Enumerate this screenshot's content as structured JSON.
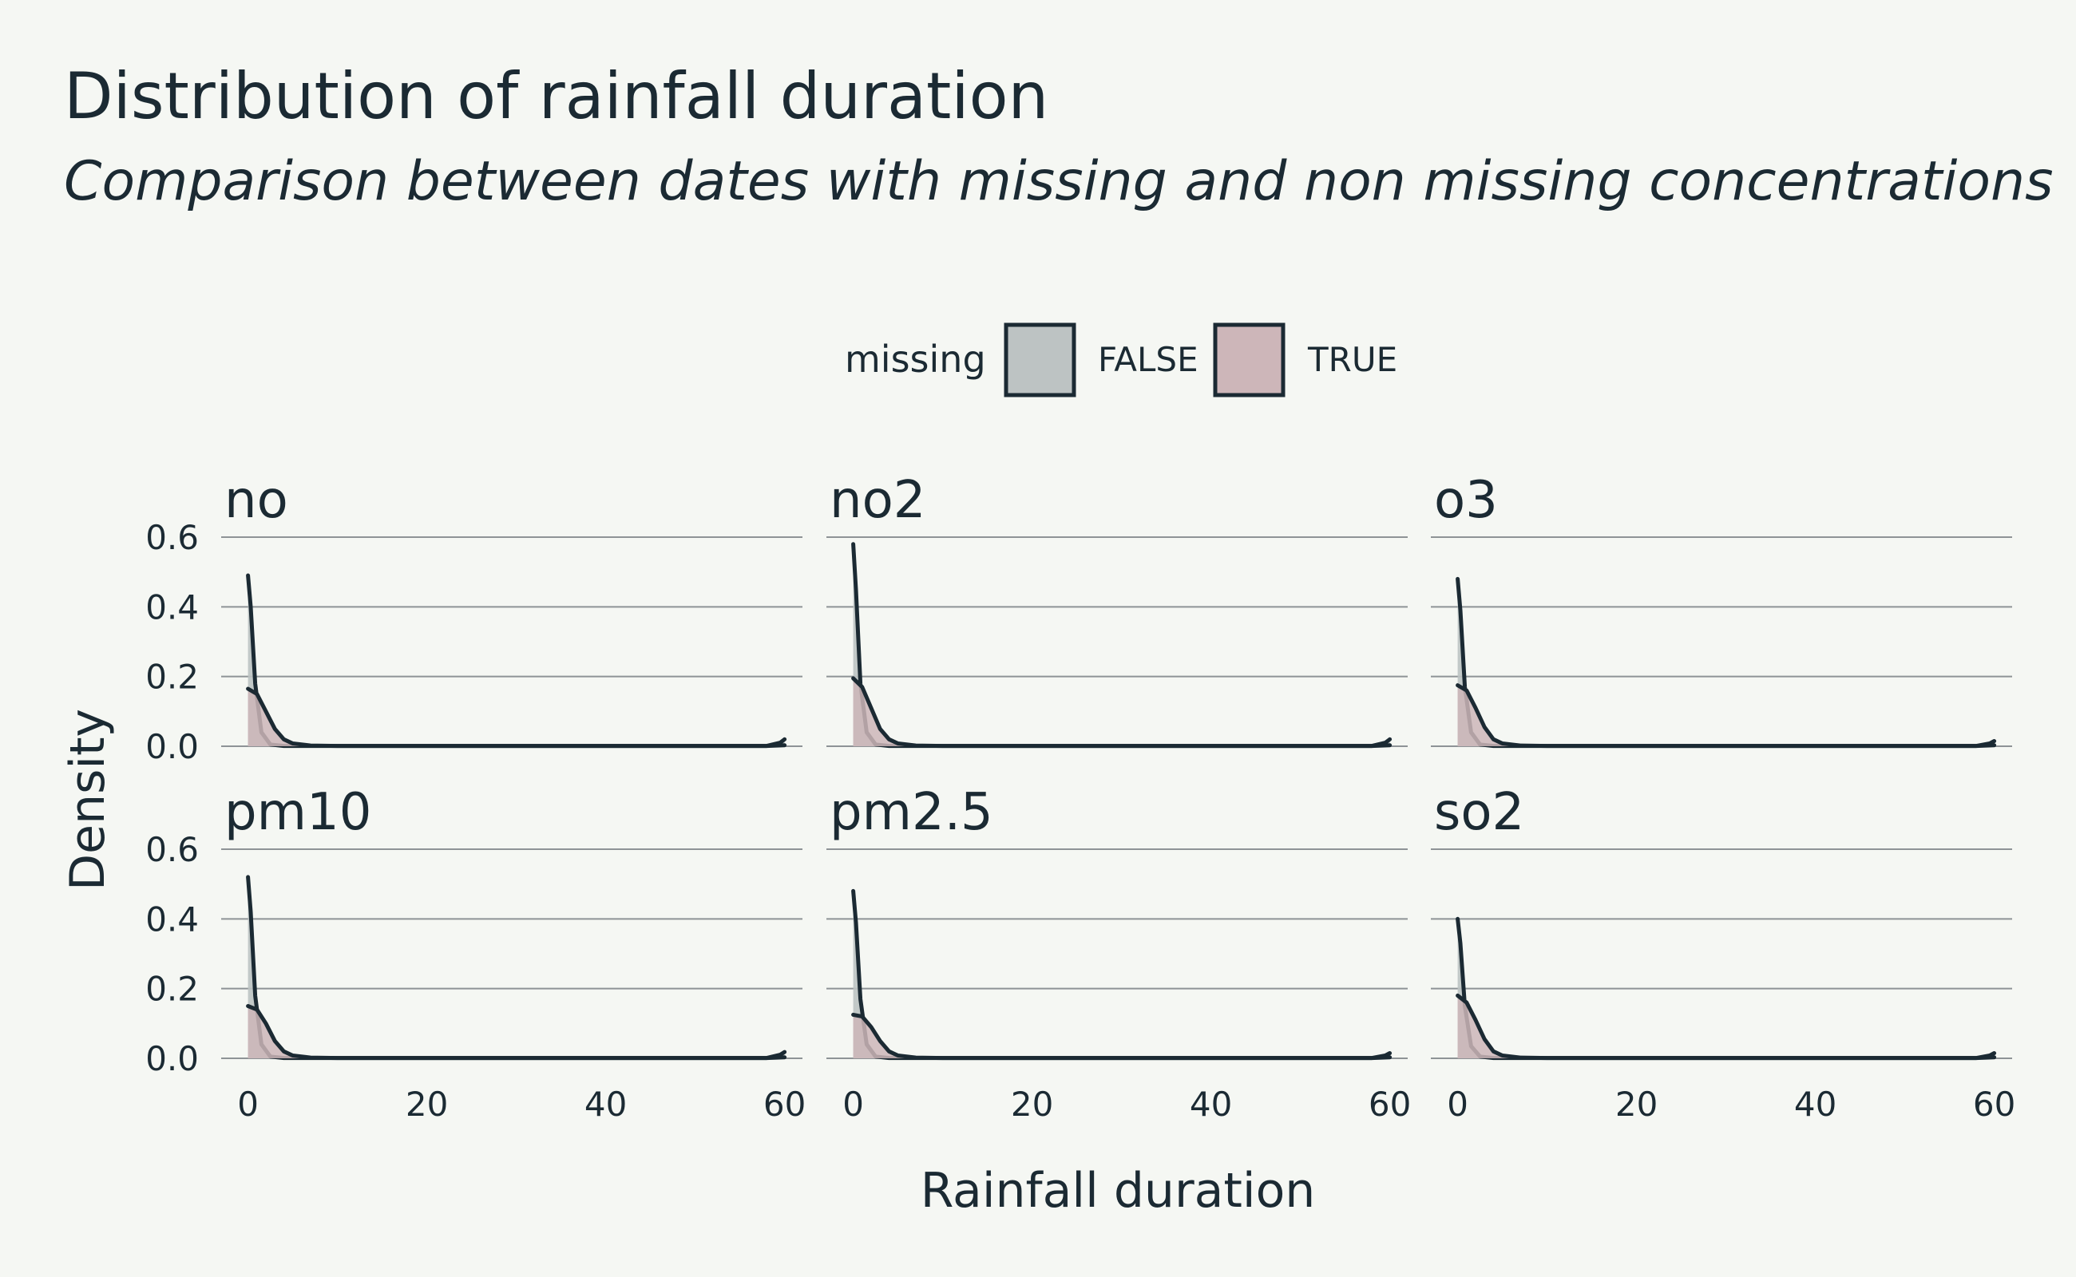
{
  "chart_data": {
    "type": "area",
    "title": "Distribution of rainfall duration",
    "subtitle": "Comparison between dates with missing and non missing concentrations",
    "xlabel": "Rainfall duration",
    "ylabel": "Density",
    "xlim": [
      -3,
      62
    ],
    "ylim": [
      0,
      0.6
    ],
    "x_ticks": [
      0,
      20,
      40,
      60
    ],
    "y_ticks": [
      0.0,
      0.2,
      0.4,
      0.6
    ],
    "y_tick_labels": [
      "0.0",
      "0.2",
      "0.4",
      "0.6"
    ],
    "grid": true,
    "legend": {
      "title": "missing",
      "position": "top",
      "entries": [
        {
          "label": "FALSE",
          "color": "#bdc3c3"
        },
        {
          "label": "TRUE",
          "color": "#cdb6b9"
        }
      ]
    },
    "panels": [
      {
        "label": "no",
        "series": [
          {
            "missing": "FALSE",
            "x": [
              0,
              0.3,
              0.8,
              1.5,
              2.5,
              4,
              10,
              58,
              59.5,
              60
            ],
            "y": [
              0.49,
              0.4,
              0.18,
              0.04,
              0.005,
              0.001,
              0.001,
              0.001,
              0.01,
              0.02
            ]
          },
          {
            "missing": "TRUE",
            "x": [
              0,
              1,
              2,
              3,
              4,
              5,
              7,
              10,
              30,
              58,
              60
            ],
            "y": [
              0.165,
              0.15,
              0.1,
              0.05,
              0.02,
              0.008,
              0.002,
              0.001,
              0.001,
              0.001,
              0.003
            ]
          }
        ]
      },
      {
        "label": "no2",
        "series": [
          {
            "missing": "FALSE",
            "x": [
              0,
              0.3,
              0.8,
              1.5,
              2.5,
              4,
              10,
              58,
              59.5,
              60
            ],
            "y": [
              0.58,
              0.45,
              0.18,
              0.04,
              0.005,
              0.001,
              0.001,
              0.001,
              0.01,
              0.02
            ]
          },
          {
            "missing": "TRUE",
            "x": [
              0,
              1,
              2,
              3,
              4,
              5,
              7,
              10,
              30,
              58,
              60
            ],
            "y": [
              0.195,
              0.17,
              0.11,
              0.05,
              0.02,
              0.008,
              0.002,
              0.001,
              0.001,
              0.001,
              0.003
            ]
          }
        ]
      },
      {
        "label": "o3",
        "series": [
          {
            "missing": "FALSE",
            "x": [
              0,
              0.3,
              0.8,
              1.5,
              2.5,
              4,
              10,
              58,
              59.5,
              60
            ],
            "y": [
              0.48,
              0.39,
              0.17,
              0.04,
              0.005,
              0.001,
              0.001,
              0.001,
              0.008,
              0.015
            ]
          },
          {
            "missing": "TRUE",
            "x": [
              0,
              1,
              2,
              3,
              4,
              5,
              7,
              10,
              30,
              58,
              60
            ],
            "y": [
              0.175,
              0.16,
              0.11,
              0.055,
              0.02,
              0.008,
              0.002,
              0.001,
              0.001,
              0.001,
              0.003
            ]
          }
        ]
      },
      {
        "label": "pm10",
        "series": [
          {
            "missing": "FALSE",
            "x": [
              0,
              0.3,
              0.8,
              1.5,
              2.5,
              4,
              10,
              58,
              59.5,
              60
            ],
            "y": [
              0.52,
              0.42,
              0.18,
              0.04,
              0.005,
              0.001,
              0.001,
              0.001,
              0.01,
              0.018
            ]
          },
          {
            "missing": "TRUE",
            "x": [
              0,
              1,
              2,
              3,
              4,
              5,
              7,
              10,
              30,
              58,
              60
            ],
            "y": [
              0.15,
              0.14,
              0.1,
              0.05,
              0.02,
              0.008,
              0.002,
              0.001,
              0.001,
              0.001,
              0.003
            ]
          }
        ]
      },
      {
        "label": "pm2.5",
        "series": [
          {
            "missing": "FALSE",
            "x": [
              0,
              0.3,
              0.8,
              1.5,
              2.5,
              4,
              10,
              58,
              59.5,
              60
            ],
            "y": [
              0.48,
              0.39,
              0.17,
              0.04,
              0.005,
              0.001,
              0.001,
              0.001,
              0.008,
              0.015
            ]
          },
          {
            "missing": "TRUE",
            "x": [
              0,
              1,
              2,
              3,
              4,
              5,
              7,
              10,
              30,
              58,
              60
            ],
            "y": [
              0.125,
              0.12,
              0.09,
              0.05,
              0.02,
              0.008,
              0.002,
              0.001,
              0.001,
              0.001,
              0.003
            ]
          }
        ]
      },
      {
        "label": "so2",
        "series": [
          {
            "missing": "FALSE",
            "x": [
              0,
              0.3,
              0.8,
              1.5,
              2.5,
              4,
              10,
              58,
              59.5,
              60
            ],
            "y": [
              0.4,
              0.33,
              0.15,
              0.035,
              0.005,
              0.001,
              0.001,
              0.001,
              0.008,
              0.015
            ]
          },
          {
            "missing": "TRUE",
            "x": [
              0,
              1,
              2,
              3,
              4,
              5,
              7,
              10,
              30,
              58,
              60
            ],
            "y": [
              0.18,
              0.16,
              0.11,
              0.055,
              0.02,
              0.008,
              0.002,
              0.001,
              0.001,
              0.001,
              0.003
            ]
          }
        ]
      }
    ]
  }
}
